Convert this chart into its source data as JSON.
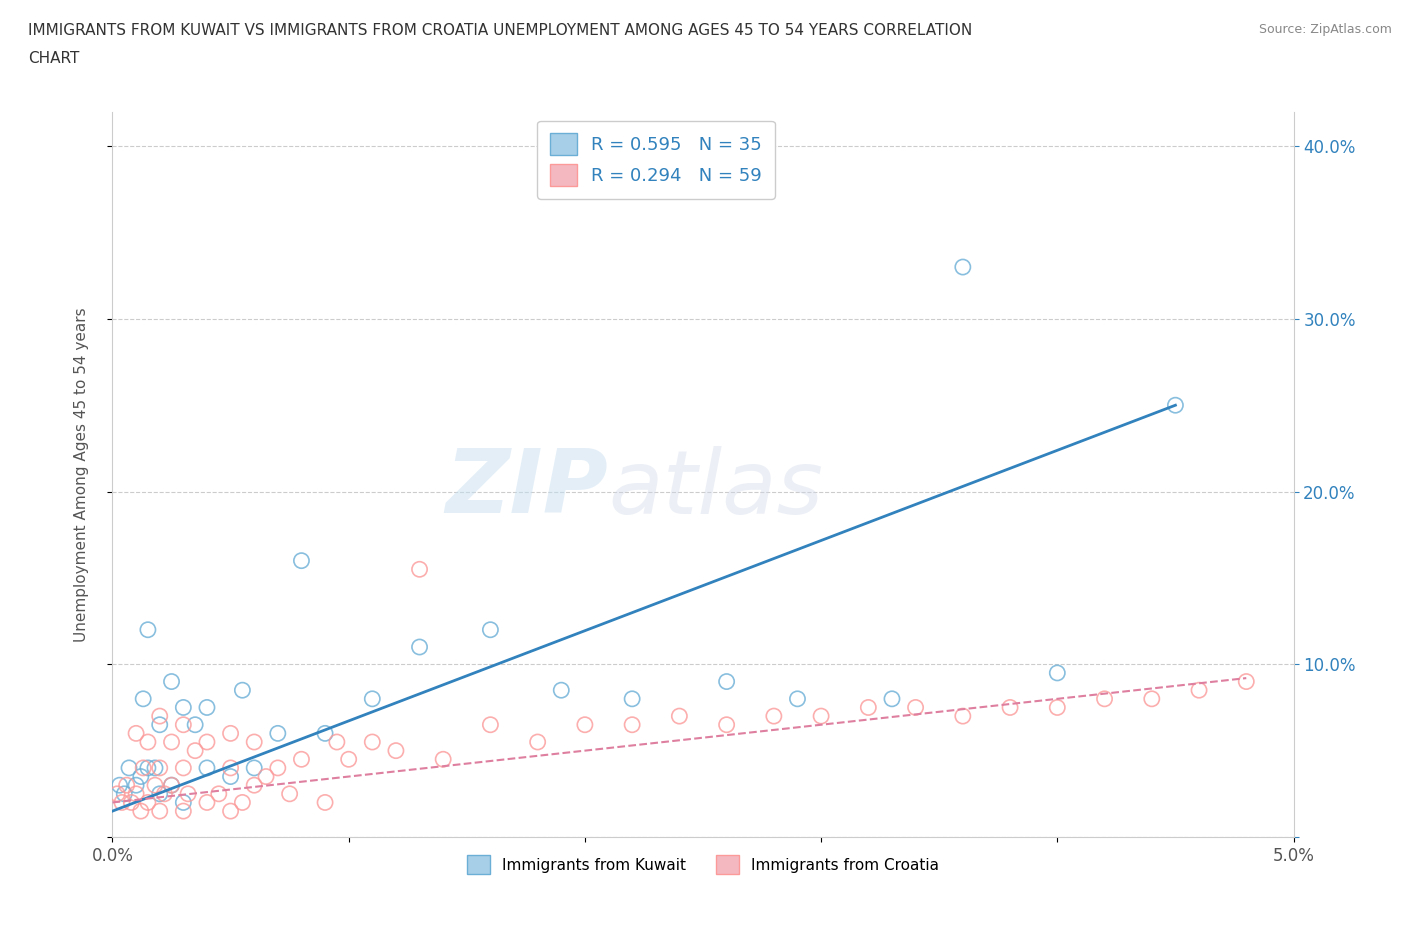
{
  "title_line1": "IMMIGRANTS FROM KUWAIT VS IMMIGRANTS FROM CROATIA UNEMPLOYMENT AMONG AGES 45 TO 54 YEARS CORRELATION",
  "title_line2": "CHART",
  "source": "Source: ZipAtlas.com",
  "ylabel": "Unemployment Among Ages 45 to 54 years",
  "xlim": [
    0.0,
    0.05
  ],
  "ylim": [
    0.0,
    0.42
  ],
  "xticks": [
    0.0,
    0.01,
    0.02,
    0.03,
    0.04,
    0.05
  ],
  "xticklabels": [
    "0.0%",
    "",
    "",
    "",
    "",
    "5.0%"
  ],
  "yticks": [
    0.0,
    0.1,
    0.2,
    0.3,
    0.4
  ],
  "left_yticklabels": [
    "",
    "",
    "",
    "",
    ""
  ],
  "right_yticklabels": [
    "",
    "10.0%",
    "20.0%",
    "30.0%",
    "40.0%"
  ],
  "kuwait_color": "#a8cfe8",
  "croatia_color": "#f4b8c1",
  "kuwait_edge_color": "#6baed6",
  "croatia_edge_color": "#fb9a99",
  "kuwait_line_color": "#3182bd",
  "croatia_line_color": "#de7fa0",
  "kuwait_R": 0.595,
  "kuwait_N": 35,
  "croatia_R": 0.294,
  "croatia_N": 59,
  "watermark_zip": "ZIP",
  "watermark_atlas": "atlas",
  "legend_label_kuwait": "Immigrants from Kuwait",
  "legend_label_croatia": "Immigrants from Croatia",
  "kuwait_scatter_x": [
    0.0003,
    0.0005,
    0.0007,
    0.001,
    0.0012,
    0.0013,
    0.0015,
    0.0015,
    0.0018,
    0.002,
    0.002,
    0.0025,
    0.0025,
    0.003,
    0.003,
    0.0035,
    0.004,
    0.004,
    0.005,
    0.0055,
    0.006,
    0.007,
    0.008,
    0.009,
    0.011,
    0.013,
    0.016,
    0.019,
    0.022,
    0.026,
    0.029,
    0.033,
    0.036,
    0.04,
    0.045
  ],
  "kuwait_scatter_y": [
    0.03,
    0.025,
    0.04,
    0.03,
    0.035,
    0.08,
    0.04,
    0.12,
    0.04,
    0.025,
    0.065,
    0.03,
    0.09,
    0.02,
    0.075,
    0.065,
    0.04,
    0.075,
    0.035,
    0.085,
    0.04,
    0.06,
    0.16,
    0.06,
    0.08,
    0.11,
    0.12,
    0.085,
    0.08,
    0.09,
    0.08,
    0.08,
    0.33,
    0.095,
    0.25
  ],
  "croatia_scatter_x": [
    0.0002,
    0.0004,
    0.0006,
    0.0008,
    0.001,
    0.001,
    0.0012,
    0.0013,
    0.0015,
    0.0015,
    0.0018,
    0.002,
    0.002,
    0.002,
    0.0022,
    0.0025,
    0.0025,
    0.003,
    0.003,
    0.003,
    0.0032,
    0.0035,
    0.004,
    0.004,
    0.0045,
    0.005,
    0.005,
    0.005,
    0.0055,
    0.006,
    0.006,
    0.0065,
    0.007,
    0.0075,
    0.008,
    0.009,
    0.0095,
    0.01,
    0.011,
    0.012,
    0.013,
    0.014,
    0.016,
    0.018,
    0.02,
    0.022,
    0.024,
    0.026,
    0.028,
    0.03,
    0.032,
    0.034,
    0.036,
    0.038,
    0.04,
    0.042,
    0.044,
    0.046,
    0.048
  ],
  "croatia_scatter_y": [
    0.025,
    0.02,
    0.03,
    0.02,
    0.025,
    0.06,
    0.015,
    0.04,
    0.02,
    0.055,
    0.03,
    0.015,
    0.04,
    0.07,
    0.025,
    0.03,
    0.055,
    0.015,
    0.04,
    0.065,
    0.025,
    0.05,
    0.02,
    0.055,
    0.025,
    0.015,
    0.04,
    0.06,
    0.02,
    0.03,
    0.055,
    0.035,
    0.04,
    0.025,
    0.045,
    0.02,
    0.055,
    0.045,
    0.055,
    0.05,
    0.155,
    0.045,
    0.065,
    0.055,
    0.065,
    0.065,
    0.07,
    0.065,
    0.07,
    0.07,
    0.075,
    0.075,
    0.07,
    0.075,
    0.075,
    0.08,
    0.08,
    0.085,
    0.09
  ],
  "kuwait_trend_x": [
    0.0,
    0.045
  ],
  "kuwait_trend_y": [
    0.015,
    0.25
  ],
  "croatia_trend_x": [
    0.0,
    0.048
  ],
  "croatia_trend_y": [
    0.02,
    0.092
  ],
  "bg_color": "#ffffff",
  "grid_color": "#cccccc",
  "right_axis_color": "#3182bd"
}
